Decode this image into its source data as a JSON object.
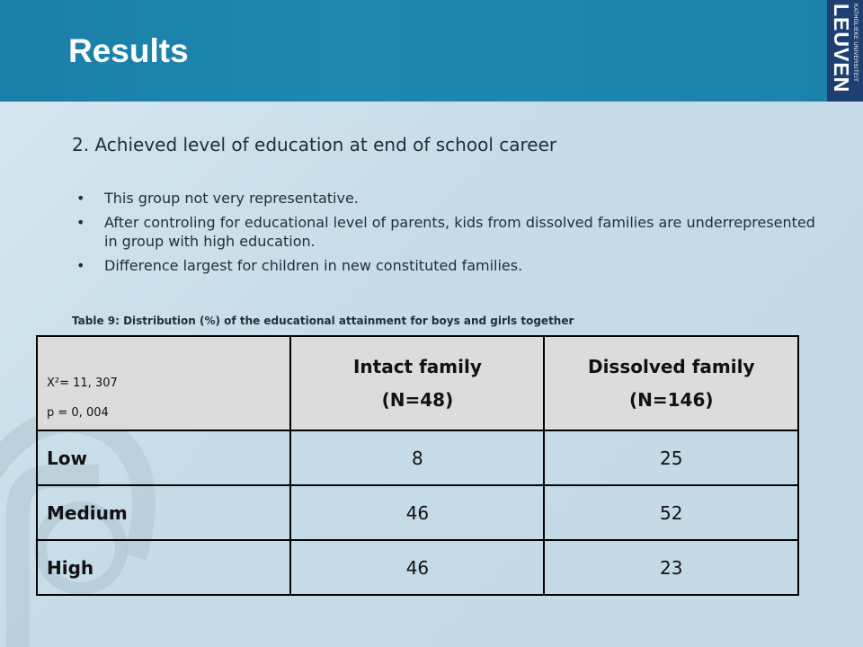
{
  "header": {
    "title": "Results"
  },
  "logo": {
    "small": "KATHOLIEKE UNIVERSITEIT",
    "big": "LEUVEN"
  },
  "subtitle": "2. Achieved level of education at end of school career",
  "bullets": [
    "This group not very representative.",
    "After controling for educational  level of parents, kids from dissolved families are underrepresented in group with high education.",
    "Difference largest for children in new constituted families."
  ],
  "table": {
    "caption": "Table 9: Distribution (%) of the educational attainment for boys and girls together",
    "stat_chi": "X²= 11, 307",
    "stat_p": "p = 0, 004",
    "columns": [
      {
        "name": "Intact family",
        "n": "(N=48)"
      },
      {
        "name": "Dissolved family",
        "n": "(N=146)"
      }
    ],
    "rows": [
      {
        "label": "Low",
        "values": [
          "8",
          "25"
        ]
      },
      {
        "label": "Medium",
        "values": [
          "46",
          "52"
        ]
      },
      {
        "label": "High",
        "values": [
          "46",
          "23"
        ]
      }
    ]
  },
  "colors": {
    "header_bg": "#1e88b0",
    "logo_bg": "#1d3f72",
    "table_header_bg": "#dcdcdc"
  }
}
